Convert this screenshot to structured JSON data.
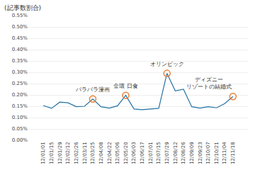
{
  "chart_data": {
    "type": "line",
    "ylabel": "(記事数割合)",
    "categories": [
      "12/01/01",
      "12/01/15",
      "12/01/29",
      "12/02/12",
      "12/02/26",
      "12/03/11",
      "12/03/25",
      "12/04/08",
      "12/04/22",
      "12/05/06",
      "12/05/20",
      "12/06/03",
      "12/06/17",
      "12/07/01",
      "12/07/15",
      "12/07/29",
      "12/08/12",
      "12/08/26",
      "12/09/09",
      "12/09/23",
      "12/10/07",
      "12/10/21",
      "12/11/04",
      "12/11/18"
    ],
    "series": [
      {
        "type": "line",
        "color": "#2472a4",
        "values": [
          0.00153,
          0.00141,
          0.00168,
          0.00165,
          0.00148,
          0.0015,
          0.00182,
          0.00148,
          0.00142,
          0.00152,
          0.00198,
          0.00138,
          0.00135,
          0.00137,
          0.00141,
          0.00295,
          0.00218,
          0.00225,
          0.00148,
          0.00142,
          0.00148,
          0.00143,
          0.00162,
          0.00193
        ]
      },
      {
        "type": "scatter",
        "marker": "circle-open",
        "color": "#ed7d31",
        "values": [
          null,
          null,
          null,
          null,
          null,
          null,
          0.00182,
          null,
          null,
          null,
          0.00198,
          null,
          null,
          null,
          null,
          0.00295,
          null,
          null,
          null,
          null,
          null,
          null,
          null,
          0.00193
        ]
      }
    ],
    "ylim": [
      0.0,
      0.0055
    ],
    "yticks": [
      {
        "value": 0.0,
        "label": "0.00%"
      },
      {
        "value": 0.0005,
        "label": "0.05%"
      },
      {
        "value": 0.001,
        "label": "0.10%"
      },
      {
        "value": 0.0015,
        "label": "0.15%"
      },
      {
        "value": 0.002,
        "label": "0.20%"
      },
      {
        "value": 0.0025,
        "label": "0.25%"
      },
      {
        "value": 0.003,
        "label": "0.30%"
      },
      {
        "value": 0.0035,
        "label": "0.35%"
      },
      {
        "value": 0.004,
        "label": "0.40%"
      },
      {
        "value": 0.0045,
        "label": "0.45%"
      },
      {
        "value": 0.005,
        "label": "0.50%"
      },
      {
        "value": 0.0055,
        "label": "0.55%"
      }
    ],
    "grid": true,
    "annotations": [
      {
        "text": "バラバラ漫画",
        "x": "12/03/25"
      },
      {
        "text": "金環 日食",
        "x": "12/05/20"
      },
      {
        "text": "オリンピック",
        "x": "12/07/29"
      },
      {
        "text": "ディズニー\nリゾートの結婚式",
        "x": "12/11/18"
      }
    ]
  }
}
